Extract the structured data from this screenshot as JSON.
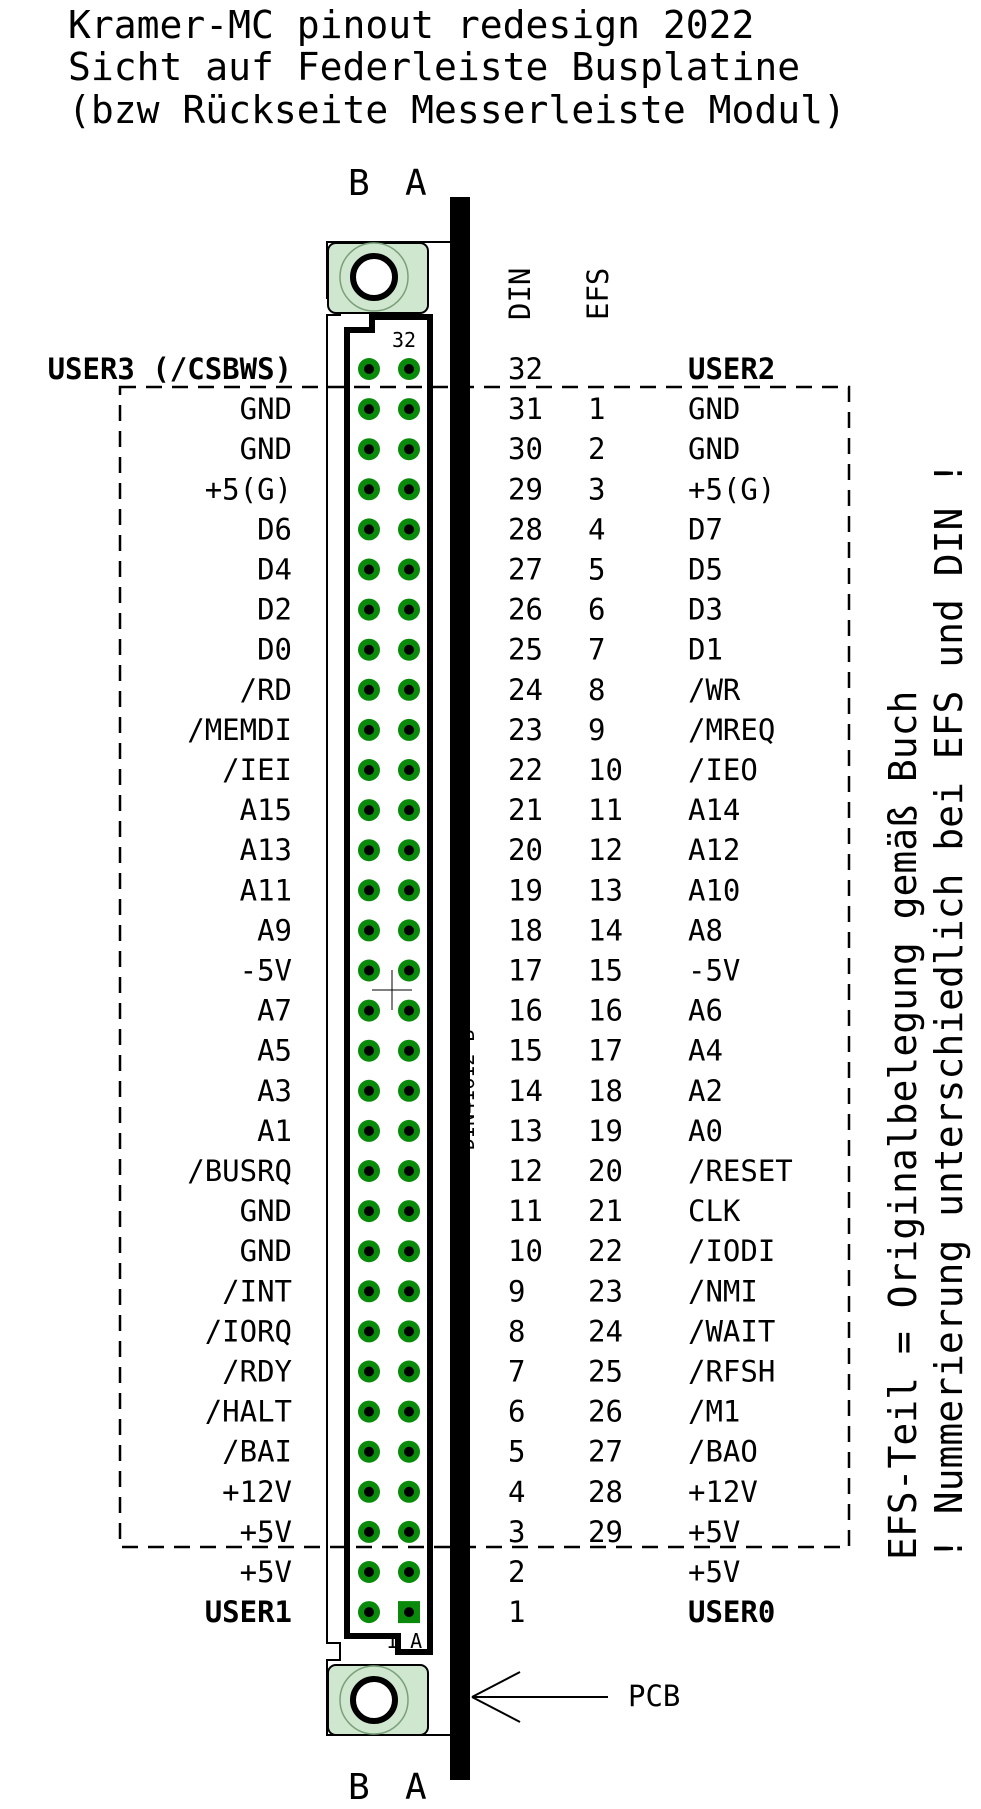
{
  "title_lines": [
    "Kramer-MC pinout redesign 2022",
    "Sicht auf Federleiste Busplatine",
    "(bzw Rückseite Messerleiste Modul)"
  ],
  "column_letters": {
    "b": "B",
    "a": "A"
  },
  "column_headers": {
    "din": "DIN",
    "efs": "EFS"
  },
  "connector": {
    "top_pin_label": "32",
    "bottom_pin_label": "1 A",
    "part_name": "DIN41612-B"
  },
  "pcb_label": "PCB",
  "side_notes": [
    "EFS-Teil = Originalbelegung gemäß Buch",
    "! Nummerierung unterschiedlich bei EFS und DIN !"
  ],
  "pins": [
    {
      "b": "USER3 (/CSBWS)",
      "din": "32",
      "efs": "",
      "a": "USER2",
      "bold": true
    },
    {
      "b": "GND",
      "din": "31",
      "efs": "1",
      "a": "GND",
      "bold": false
    },
    {
      "b": "GND",
      "din": "30",
      "efs": "2",
      "a": "GND",
      "bold": false
    },
    {
      "b": "+5(G)",
      "din": "29",
      "efs": "3",
      "a": "+5(G)",
      "bold": false
    },
    {
      "b": "D6",
      "din": "28",
      "efs": "4",
      "a": "D7",
      "bold": false
    },
    {
      "b": "D4",
      "din": "27",
      "efs": "5",
      "a": "D5",
      "bold": false
    },
    {
      "b": "D2",
      "din": "26",
      "efs": "6",
      "a": "D3",
      "bold": false
    },
    {
      "b": "D0",
      "din": "25",
      "efs": "7",
      "a": "D1",
      "bold": false
    },
    {
      "b": "/RD",
      "din": "24",
      "efs": "8",
      "a": "/WR",
      "bold": false
    },
    {
      "b": "/MEMDI",
      "din": "23",
      "efs": "9",
      "a": "/MREQ",
      "bold": false
    },
    {
      "b": "/IEI",
      "din": "22",
      "efs": "10",
      "a": "/IEO",
      "bold": false
    },
    {
      "b": "A15",
      "din": "21",
      "efs": "11",
      "a": "A14",
      "bold": false
    },
    {
      "b": "A13",
      "din": "20",
      "efs": "12",
      "a": "A12",
      "bold": false
    },
    {
      "b": "A11",
      "din": "19",
      "efs": "13",
      "a": "A10",
      "bold": false
    },
    {
      "b": "A9",
      "din": "18",
      "efs": "14",
      "a": "A8",
      "bold": false
    },
    {
      "b": "-5V",
      "din": "17",
      "efs": "15",
      "a": "-5V",
      "bold": false
    },
    {
      "b": "A7",
      "din": "16",
      "efs": "16",
      "a": "A6",
      "bold": false
    },
    {
      "b": "A5",
      "din": "15",
      "efs": "17",
      "a": "A4",
      "bold": false
    },
    {
      "b": "A3",
      "din": "14",
      "efs": "18",
      "a": "A2",
      "bold": false
    },
    {
      "b": "A1",
      "din": "13",
      "efs": "19",
      "a": "A0",
      "bold": false
    },
    {
      "b": "/BUSRQ",
      "din": "12",
      "efs": "20",
      "a": "/RESET",
      "bold": false
    },
    {
      "b": "GND",
      "din": "11",
      "efs": "21",
      "a": "CLK",
      "bold": false
    },
    {
      "b": "GND",
      "din": "10",
      "efs": "22",
      "a": "/IODI",
      "bold": false
    },
    {
      "b": "/INT",
      "din": "9",
      "efs": "23",
      "a": "/NMI",
      "bold": false
    },
    {
      "b": "/IORQ",
      "din": "8",
      "efs": "24",
      "a": "/WAIT",
      "bold": false
    },
    {
      "b": "/RDY",
      "din": "7",
      "efs": "25",
      "a": "/RFSH",
      "bold": false
    },
    {
      "b": "/HALT",
      "din": "6",
      "efs": "26",
      "a": "/M1",
      "bold": false
    },
    {
      "b": "/BAI",
      "din": "5",
      "efs": "27",
      "a": "/BAO",
      "bold": false
    },
    {
      "b": "+12V",
      "din": "4",
      "efs": "28",
      "a": "+12V",
      "bold": false
    },
    {
      "b": "+5V",
      "din": "3",
      "efs": "29",
      "a": "+5V",
      "bold": false
    },
    {
      "b": "+5V",
      "din": "2",
      "efs": "",
      "a": "+5V",
      "bold": false
    },
    {
      "b": "USER1",
      "din": "1",
      "efs": "",
      "a": "USER0",
      "bold": true
    }
  ],
  "colors": {
    "pad_green": "#0a8a0a",
    "pad_hole": "#000000",
    "mount_fill": "#cfe6cf"
  }
}
